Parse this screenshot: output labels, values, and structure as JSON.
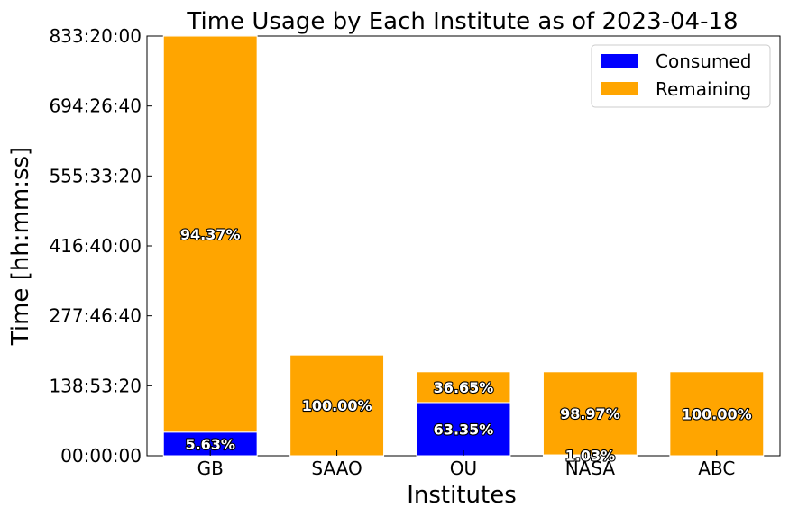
{
  "chart_data": {
    "type": "bar",
    "stacked": true,
    "title": "Time Usage by Each Institute as of 2023-04-18",
    "xlabel": "Institutes",
    "ylabel": "Time [hh:mm:ss]",
    "categories": [
      "GB",
      "SAAO",
      "OU",
      "NASA",
      "ABC"
    ],
    "ylim_hours": [
      0,
      833.3333
    ],
    "yticks": [
      "00:00:00",
      "138:53:20",
      "277:46:40",
      "416:40:00",
      "555:33:20",
      "694:26:40",
      "833:20:00"
    ],
    "ytick_values_hours": [
      0,
      138.8889,
      277.7778,
      416.6667,
      555.5556,
      694.4444,
      833.3333
    ],
    "series": [
      {
        "name": "Consumed",
        "color": "#0000ff",
        "values_hours": [
          46.9,
          0,
          105.6,
          1.7,
          0
        ],
        "labels": [
          "5.63%",
          "",
          "63.35%",
          "1.03%",
          ""
        ]
      },
      {
        "name": "Remaining",
        "color": "#ffa500",
        "values_hours": [
          786.4,
          200.0,
          61.1,
          165.0,
          166.7
        ],
        "labels": [
          "94.37%",
          "100.00%",
          "36.65%",
          "98.97%",
          "100.00%"
        ]
      }
    ],
    "legend": {
      "position": "top-right",
      "entries": [
        "Consumed",
        "Remaining"
      ]
    },
    "grid": false
  }
}
